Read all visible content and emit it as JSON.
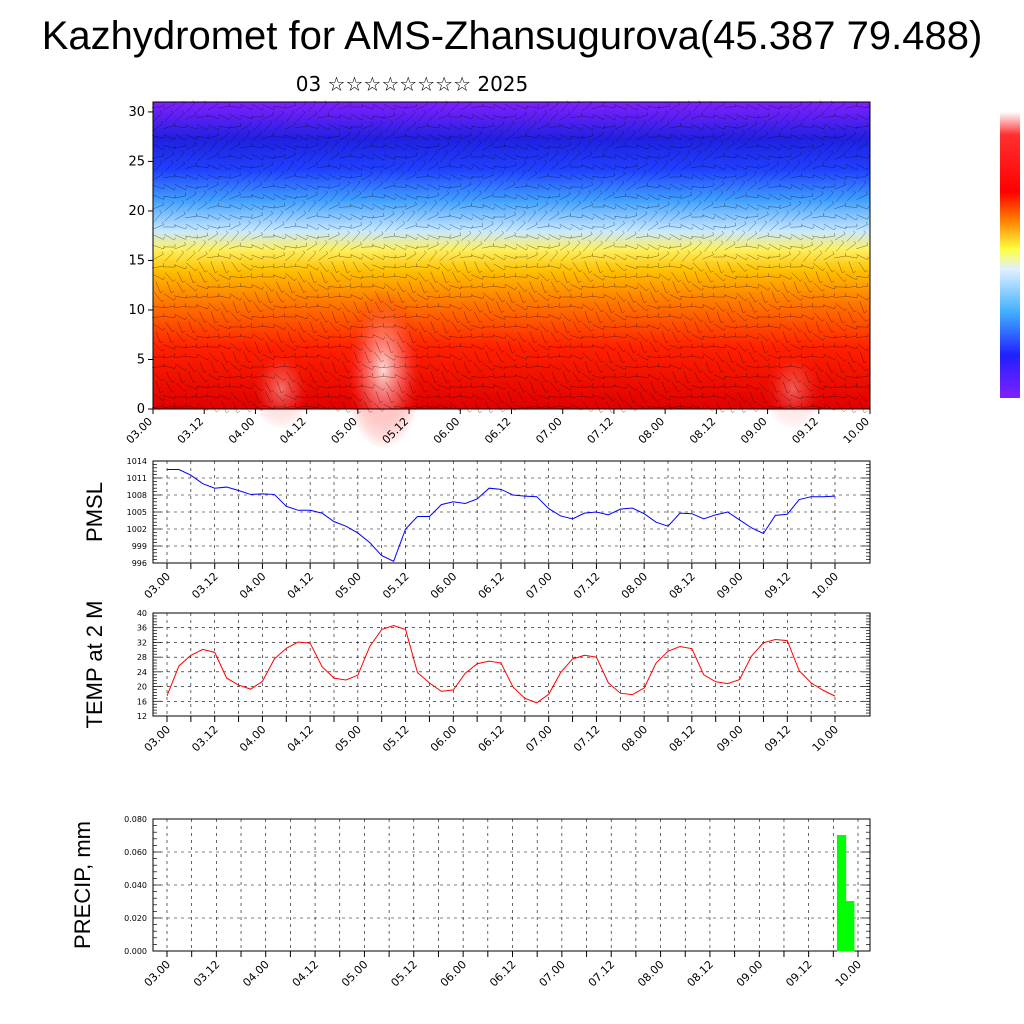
{
  "header": {
    "title": "Kazhydromet for AMS-Zhansugurova(45.387 79.488)",
    "subtitle": "03 ☆☆☆☆☆☆☆☆ 2025"
  },
  "colors": {
    "pmsl_line": "#0000ff",
    "temp_line": "#ff0000",
    "precip_bar": "#00ff00",
    "colorbar_stops": [
      "#ffffff",
      "#ff0000",
      "#ff8000",
      "#ffff00",
      "#80c0ff",
      "#0000ff",
      "#8000ff"
    ]
  },
  "x_axis_labels": [
    "03.00",
    "03.12",
    "04.00",
    "04.12",
    "05.00",
    "05.12",
    "06.00",
    "06.12",
    "07.00",
    "07.12",
    "08.00",
    "08.12",
    "09.00",
    "09.12",
    "10.00"
  ],
  "chart_data": [
    {
      "type": "heatmap",
      "title": "",
      "xlabel": "",
      "ylabel": "",
      "ylim": [
        0,
        30
      ],
      "yticks": [
        "0",
        "5",
        "10",
        "15",
        "20",
        "25",
        "30"
      ],
      "categories": [
        "03.00",
        "03.12",
        "04.00",
        "04.12",
        "05.00",
        "05.12",
        "06.00",
        "06.12",
        "07.00",
        "07.12",
        "08.00",
        "08.12",
        "09.00",
        "09.12",
        "10.00"
      ],
      "note_levels": "vertical temperature-like colour field with wind barbs"
    },
    {
      "type": "line",
      "ylabel": "PMSL",
      "ylim": [
        996,
        1014
      ],
      "yticks": [
        "996",
        "999",
        "1002",
        "1005",
        "1008",
        "1011",
        "1014"
      ],
      "x": [
        "03.00",
        "03.03",
        "03.06",
        "03.09",
        "03.12",
        "03.15",
        "03.18",
        "03.21",
        "04.00",
        "04.03",
        "04.06",
        "04.09",
        "04.12",
        "04.15",
        "04.18",
        "04.21",
        "05.00",
        "05.03",
        "05.06",
        "05.09",
        "05.12",
        "05.15",
        "05.18",
        "05.21",
        "06.00",
        "06.03",
        "06.06",
        "06.09",
        "06.12",
        "06.15",
        "06.18",
        "06.21",
        "07.00",
        "07.03",
        "07.06",
        "07.09",
        "07.12",
        "07.15",
        "07.18",
        "07.21",
        "08.00",
        "08.03",
        "08.06",
        "08.09",
        "08.12",
        "08.15",
        "08.18",
        "08.21",
        "09.00",
        "09.03",
        "09.06",
        "09.09",
        "09.12",
        "09.15",
        "09.18",
        "09.21",
        "10.00"
      ],
      "values": [
        1012.5,
        1012.5,
        1011.5,
        1010,
        1009.2,
        1009.4,
        1008.8,
        1008.1,
        1008.2,
        1008.1,
        1006,
        1005.3,
        1005.3,
        1004.8,
        1003.3,
        1002.5,
        1001.3,
        999.6,
        997.3,
        996.3,
        1002,
        1004.2,
        1004.2,
        1006.3,
        1006.8,
        1006.5,
        1007.3,
        1009.2,
        1009,
        1008,
        1007.8,
        1007.7,
        1005.6,
        1004.3,
        1003.8,
        1004.8,
        1005,
        1004.5,
        1005.5,
        1005.7,
        1004.7,
        1003.2,
        1002.5,
        1004.8,
        1004.7,
        1003.8,
        1004.5,
        1005,
        1003.6,
        1002.2,
        1001.2,
        1004.4,
        1004.6,
        1007.2,
        1007.7,
        1007.7,
        1007.8
      ]
    },
    {
      "type": "line",
      "ylabel": "TEMP at 2 M",
      "ylim": [
        12,
        40
      ],
      "yticks": [
        "12",
        "16",
        "20",
        "24",
        "28",
        "32",
        "36",
        "40"
      ],
      "x": [
        "03.00",
        "03.03",
        "03.06",
        "03.09",
        "03.12",
        "03.15",
        "03.18",
        "03.21",
        "04.00",
        "04.03",
        "04.06",
        "04.09",
        "04.12",
        "04.15",
        "04.18",
        "04.21",
        "05.00",
        "05.03",
        "05.06",
        "05.09",
        "05.12",
        "05.15",
        "05.18",
        "05.21",
        "06.00",
        "06.03",
        "06.06",
        "06.09",
        "06.12",
        "06.15",
        "06.18",
        "06.21",
        "07.00",
        "07.03",
        "07.06",
        "07.09",
        "07.12",
        "07.15",
        "07.18",
        "07.21",
        "08.00",
        "08.03",
        "08.06",
        "08.09",
        "08.12",
        "08.15",
        "08.18",
        "08.21",
        "09.00",
        "09.03",
        "09.06",
        "09.09",
        "09.12",
        "09.15",
        "09.18",
        "09.21",
        "10.00"
      ],
      "values": [
        17.5,
        25.6,
        28.5,
        30.1,
        29.3,
        22.3,
        20.4,
        19.3,
        21.4,
        27.5,
        30.4,
        32.1,
        31.8,
        25.4,
        22.3,
        21.8,
        23.1,
        30.9,
        35.5,
        36.6,
        35.5,
        23.8,
        21,
        18.7,
        19.1,
        23.6,
        26.2,
        26.9,
        26.4,
        19.9,
        16.8,
        15.6,
        17.9,
        23.8,
        27.5,
        28.5,
        28,
        21,
        18.2,
        17.8,
        19.6,
        26.4,
        29.6,
        30.9,
        30.3,
        23.2,
        21.3,
        20.8,
        21.9,
        28.3,
        31.9,
        32.8,
        32.5,
        24.3,
        21,
        19,
        17.4
      ]
    },
    {
      "type": "bar",
      "ylabel": "PRECIP, mm",
      "ylim": [
        0,
        0.08
      ],
      "yticks": [
        "0.000",
        "0.020",
        "0.040",
        "0.060",
        "0.080"
      ],
      "x": [
        "09.19",
        "09.20",
        "09.21",
        "09.22"
      ],
      "values": [
        0.07,
        0.07,
        0.03,
        0.03
      ]
    }
  ]
}
